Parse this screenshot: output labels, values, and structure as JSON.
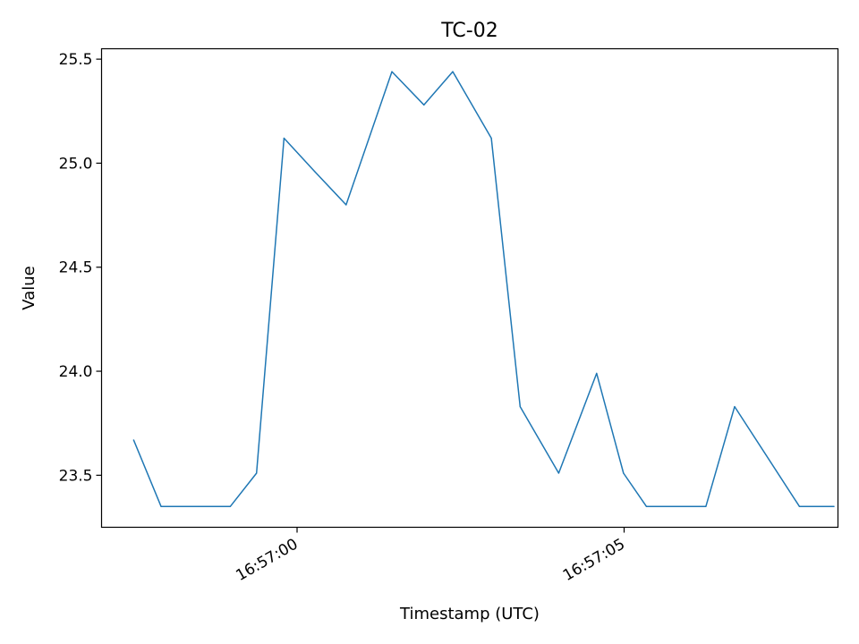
{
  "chart_data": {
    "type": "line",
    "title": "TC-02",
    "xlabel": "Timestamp (UTC)",
    "ylabel": "Value",
    "x_axis": "time",
    "x_tick_labels": [
      "16:57:00",
      "16:57:05"
    ],
    "y_tick_labels": [
      "23.5",
      "24.0",
      "24.5",
      "25.0",
      "25.5"
    ],
    "y_ticks": [
      23.5,
      24.0,
      24.5,
      25.0,
      25.5
    ],
    "ylim": [
      23.25,
      25.55
    ],
    "grid": false,
    "legend": "none",
    "series": [
      {
        "color": "#1f77b4",
        "x": [
          "16:56:57.50",
          "16:56:57.92",
          "16:56:58.49",
          "16:56:58.98",
          "16:56:59.38",
          "16:56:59.80",
          "16:57:00.27",
          "16:57:00.75",
          "16:57:01.45",
          "16:57:01.94",
          "16:57:02.38",
          "16:57:02.97",
          "16:57:03.41",
          "16:57:04.00",
          "16:57:04.58",
          "16:57:04.99",
          "16:57:05.34",
          "16:57:06.25",
          "16:57:06.69",
          "16:57:07.68",
          "16:57:08.21"
        ],
        "values": [
          23.67,
          23.35,
          23.35,
          23.35,
          23.51,
          25.12,
          24.96,
          24.8,
          25.44,
          25.28,
          25.44,
          25.12,
          23.83,
          23.51,
          23.99,
          23.51,
          23.35,
          23.35,
          23.83,
          23.35,
          23.35
        ]
      }
    ]
  }
}
